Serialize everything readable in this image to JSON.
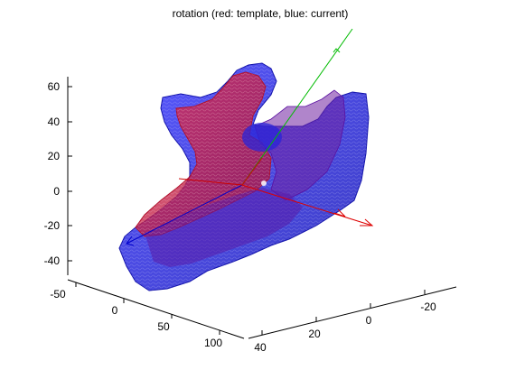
{
  "title": "rotation (red: template, blue: current)",
  "colors": {
    "template": "#e0203a",
    "current": "#2222dd",
    "axis_x": "#dd0000",
    "axis_y": "#00bb00",
    "axis_z": "#0000cc"
  },
  "axes": {
    "z_ticks": [
      "60",
      "40",
      "20",
      "0",
      "-20",
      "-40"
    ],
    "x_ticks": [
      "-50",
      "0",
      "50",
      "100"
    ],
    "y_ticks": [
      "40",
      "20",
      "0",
      "-20"
    ]
  },
  "legend": {
    "template": "red: template",
    "current": "blue: current"
  }
}
